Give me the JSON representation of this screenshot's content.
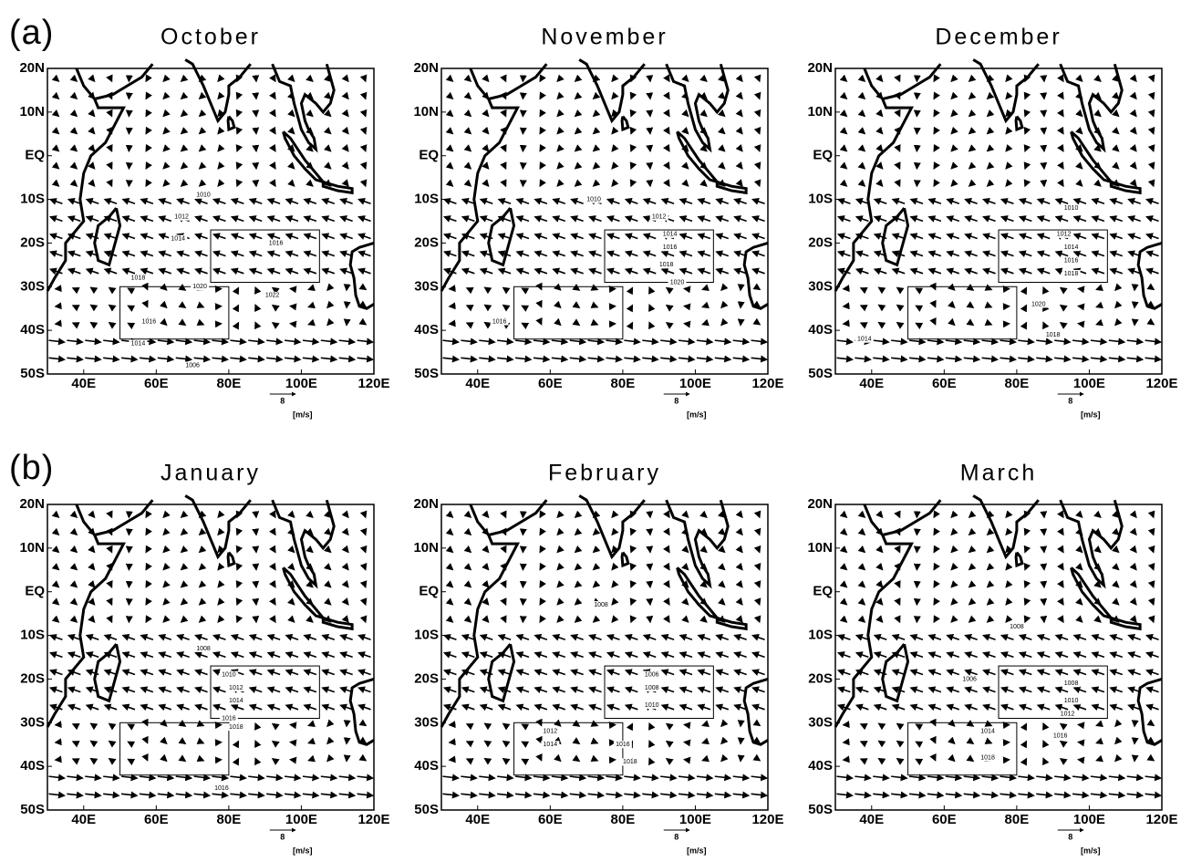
{
  "panel_labels": [
    "(a)",
    "(b)"
  ],
  "axes": {
    "xlim": [
      30,
      120
    ],
    "ylim": [
      -50,
      20
    ],
    "xticks": [
      {
        "value": 40,
        "label": "40E"
      },
      {
        "value": 60,
        "label": "60E"
      },
      {
        "value": 80,
        "label": "80E"
      },
      {
        "value": 100,
        "label": "100E"
      },
      {
        "value": 120,
        "label": "120E"
      }
    ],
    "yticks": [
      {
        "value": 20,
        "label": "20N"
      },
      {
        "value": 10,
        "label": "10N"
      },
      {
        "value": 0,
        "label": "EQ"
      },
      {
        "value": -10,
        "label": "10S"
      },
      {
        "value": -20,
        "label": "20S"
      },
      {
        "value": -30,
        "label": "30S"
      },
      {
        "value": -40,
        "label": "40S"
      },
      {
        "value": -50,
        "label": "50S"
      }
    ]
  },
  "reference_vector": {
    "value": 8,
    "unit": "[m/s]"
  },
  "boxes": [
    {
      "lon": [
        75,
        105
      ],
      "lat": [
        -29,
        -17
      ]
    },
    {
      "lon": [
        50,
        80
      ],
      "lat": [
        -42,
        -30
      ]
    }
  ],
  "panels": [
    {
      "title": "October",
      "contour_labels": [
        {
          "value": 1010,
          "lon": 73,
          "lat": -9
        },
        {
          "value": 1012,
          "lon": 67,
          "lat": -14
        },
        {
          "value": 1014,
          "lon": 66,
          "lat": -19
        },
        {
          "value": 1016,
          "lon": 93,
          "lat": -20
        },
        {
          "value": 1018,
          "lon": 55,
          "lat": -28
        },
        {
          "value": 1020,
          "lon": 72,
          "lat": -30
        },
        {
          "value": 1022,
          "lon": 92,
          "lat": -32
        },
        {
          "value": 1016,
          "lon": 58,
          "lat": -38
        },
        {
          "value": 1014,
          "lon": 55,
          "lat": -43
        },
        {
          "value": 1006,
          "lon": 70,
          "lat": -48
        }
      ]
    },
    {
      "title": "November",
      "contour_labels": [
        {
          "value": 1010,
          "lon": 72,
          "lat": -10
        },
        {
          "value": 1012,
          "lon": 90,
          "lat": -14
        },
        {
          "value": 1014,
          "lon": 93,
          "lat": -18
        },
        {
          "value": 1016,
          "lon": 93,
          "lat": -21
        },
        {
          "value": 1018,
          "lon": 92,
          "lat": -25
        },
        {
          "value": 1020,
          "lon": 95,
          "lat": -29
        },
        {
          "value": 1016,
          "lon": 46,
          "lat": -38
        }
      ]
    },
    {
      "title": "December",
      "contour_labels": [
        {
          "value": 1010,
          "lon": 95,
          "lat": -12
        },
        {
          "value": 1012,
          "lon": 93,
          "lat": -18
        },
        {
          "value": 1014,
          "lon": 95,
          "lat": -21
        },
        {
          "value": 1016,
          "lon": 95,
          "lat": -24
        },
        {
          "value": 1018,
          "lon": 95,
          "lat": -27
        },
        {
          "value": 1020,
          "lon": 86,
          "lat": -34
        },
        {
          "value": 1018,
          "lon": 90,
          "lat": -41
        },
        {
          "value": 1014,
          "lon": 38,
          "lat": -42
        }
      ]
    },
    {
      "title": "January",
      "contour_labels": [
        {
          "value": 1008,
          "lon": 73,
          "lat": -13
        },
        {
          "value": 1010,
          "lon": 80,
          "lat": -19
        },
        {
          "value": 1012,
          "lon": 82,
          "lat": -22
        },
        {
          "value": 1014,
          "lon": 82,
          "lat": -25
        },
        {
          "value": 1016,
          "lon": 80,
          "lat": -29
        },
        {
          "value": 1018,
          "lon": 82,
          "lat": -31
        },
        {
          "value": 1016,
          "lon": 78,
          "lat": -45
        }
      ]
    },
    {
      "title": "February",
      "contour_labels": [
        {
          "value": 1008,
          "lon": 74,
          "lat": -3
        },
        {
          "value": 1006,
          "lon": 88,
          "lat": -19
        },
        {
          "value": 1008,
          "lon": 88,
          "lat": -22
        },
        {
          "value": 1010,
          "lon": 88,
          "lat": -26
        },
        {
          "value": 1012,
          "lon": 60,
          "lat": -32
        },
        {
          "value": 1014,
          "lon": 60,
          "lat": -35
        },
        {
          "value": 1016,
          "lon": 80,
          "lat": -35
        },
        {
          "value": 1018,
          "lon": 82,
          "lat": -39
        }
      ]
    },
    {
      "title": "March",
      "contour_labels": [
        {
          "value": 1008,
          "lon": 80,
          "lat": -8
        },
        {
          "value": 1006,
          "lon": 67,
          "lat": -20
        },
        {
          "value": 1008,
          "lon": 95,
          "lat": -21
        },
        {
          "value": 1010,
          "lon": 95,
          "lat": -25
        },
        {
          "value": 1012,
          "lon": 94,
          "lat": -28
        },
        {
          "value": 1014,
          "lon": 72,
          "lat": -32
        },
        {
          "value": 1016,
          "lon": 92,
          "lat": -33
        },
        {
          "value": 1018,
          "lon": 72,
          "lat": -38
        }
      ]
    }
  ]
}
